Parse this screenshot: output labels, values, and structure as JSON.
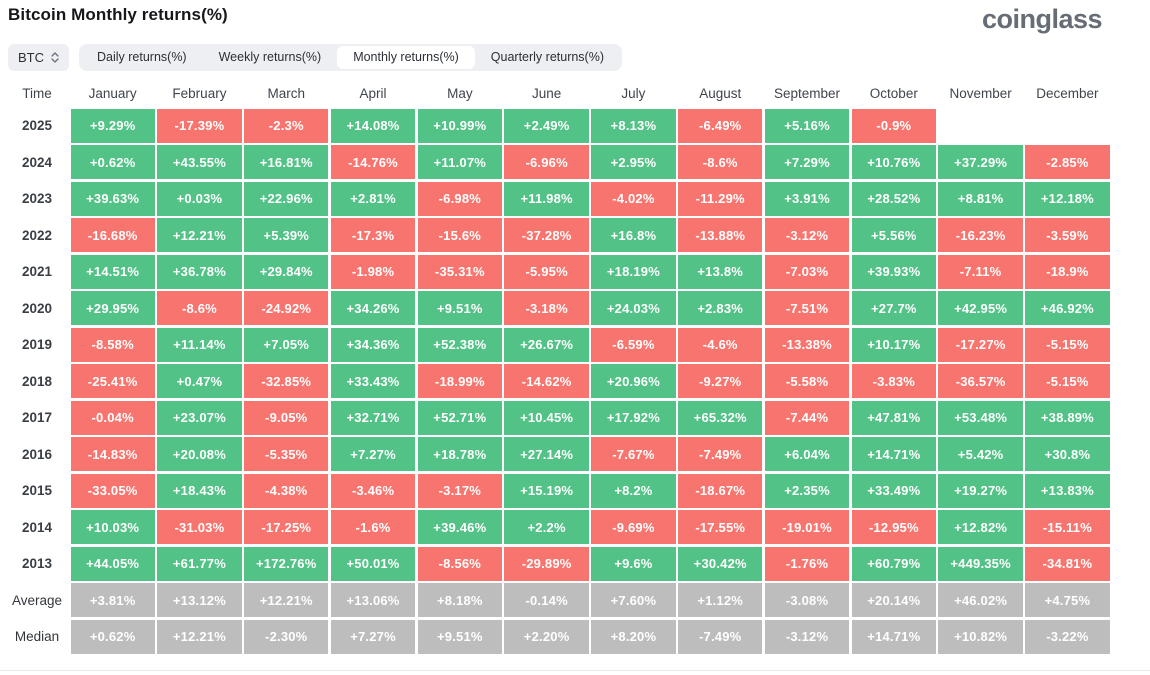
{
  "header": {
    "title": "Bitcoin Monthly returns(%)",
    "logo_text": "coinglass"
  },
  "controls": {
    "symbol": "BTC",
    "tabs": [
      "Daily returns(%)",
      "Weekly returns(%)",
      "Monthly returns(%)",
      "Quarterly returns(%)"
    ],
    "active_tab": "Monthly returns(%)"
  },
  "colors": {
    "positive": "#52c287",
    "negative": "#f8756f",
    "summary": "#bdbdbd"
  },
  "table": {
    "columns": [
      "Time",
      "January",
      "February",
      "March",
      "April",
      "May",
      "June",
      "July",
      "August",
      "September",
      "October",
      "November",
      "December"
    ],
    "rows": [
      {
        "label": "2025",
        "summary": false,
        "values": [
          "+9.29%",
          "-17.39%",
          "-2.3%",
          "+14.08%",
          "+10.99%",
          "+2.49%",
          "+8.13%",
          "-6.49%",
          "+5.16%",
          "-0.9%",
          "",
          ""
        ]
      },
      {
        "label": "2024",
        "summary": false,
        "values": [
          "+0.62%",
          "+43.55%",
          "+16.81%",
          "-14.76%",
          "+11.07%",
          "-6.96%",
          "+2.95%",
          "-8.6%",
          "+7.29%",
          "+10.76%",
          "+37.29%",
          "-2.85%"
        ]
      },
      {
        "label": "2023",
        "summary": false,
        "values": [
          "+39.63%",
          "+0.03%",
          "+22.96%",
          "+2.81%",
          "-6.98%",
          "+11.98%",
          "-4.02%",
          "-11.29%",
          "+3.91%",
          "+28.52%",
          "+8.81%",
          "+12.18%"
        ]
      },
      {
        "label": "2022",
        "summary": false,
        "values": [
          "-16.68%",
          "+12.21%",
          "+5.39%",
          "-17.3%",
          "-15.6%",
          "-37.28%",
          "+16.8%",
          "-13.88%",
          "-3.12%",
          "+5.56%",
          "-16.23%",
          "-3.59%"
        ]
      },
      {
        "label": "2021",
        "summary": false,
        "values": [
          "+14.51%",
          "+36.78%",
          "+29.84%",
          "-1.98%",
          "-35.31%",
          "-5.95%",
          "+18.19%",
          "+13.8%",
          "-7.03%",
          "+39.93%",
          "-7.11%",
          "-18.9%"
        ]
      },
      {
        "label": "2020",
        "summary": false,
        "values": [
          "+29.95%",
          "-8.6%",
          "-24.92%",
          "+34.26%",
          "+9.51%",
          "-3.18%",
          "+24.03%",
          "+2.83%",
          "-7.51%",
          "+27.7%",
          "+42.95%",
          "+46.92%"
        ]
      },
      {
        "label": "2019",
        "summary": false,
        "values": [
          "-8.58%",
          "+11.14%",
          "+7.05%",
          "+34.36%",
          "+52.38%",
          "+26.67%",
          "-6.59%",
          "-4.6%",
          "-13.38%",
          "+10.17%",
          "-17.27%",
          "-5.15%"
        ]
      },
      {
        "label": "2018",
        "summary": false,
        "values": [
          "-25.41%",
          "+0.47%",
          "-32.85%",
          "+33.43%",
          "-18.99%",
          "-14.62%",
          "+20.96%",
          "-9.27%",
          "-5.58%",
          "-3.83%",
          "-36.57%",
          "-5.15%"
        ]
      },
      {
        "label": "2017",
        "summary": false,
        "values": [
          "-0.04%",
          "+23.07%",
          "-9.05%",
          "+32.71%",
          "+52.71%",
          "+10.45%",
          "+17.92%",
          "+65.32%",
          "-7.44%",
          "+47.81%",
          "+53.48%",
          "+38.89%"
        ]
      },
      {
        "label": "2016",
        "summary": false,
        "values": [
          "-14.83%",
          "+20.08%",
          "-5.35%",
          "+7.27%",
          "+18.78%",
          "+27.14%",
          "-7.67%",
          "-7.49%",
          "+6.04%",
          "+14.71%",
          "+5.42%",
          "+30.8%"
        ]
      },
      {
        "label": "2015",
        "summary": false,
        "values": [
          "-33.05%",
          "+18.43%",
          "-4.38%",
          "-3.46%",
          "-3.17%",
          "+15.19%",
          "+8.2%",
          "-18.67%",
          "+2.35%",
          "+33.49%",
          "+19.27%",
          "+13.83%"
        ]
      },
      {
        "label": "2014",
        "summary": false,
        "values": [
          "+10.03%",
          "-31.03%",
          "-17.25%",
          "-1.6%",
          "+39.46%",
          "+2.2%",
          "-9.69%",
          "-17.55%",
          "-19.01%",
          "-12.95%",
          "+12.82%",
          "-15.11%"
        ]
      },
      {
        "label": "2013",
        "summary": false,
        "values": [
          "+44.05%",
          "+61.77%",
          "+172.76%",
          "+50.01%",
          "-8.56%",
          "-29.89%",
          "+9.6%",
          "+30.42%",
          "-1.76%",
          "+60.79%",
          "+449.35%",
          "-34.81%"
        ]
      },
      {
        "label": "Average",
        "summary": true,
        "values": [
          "+3.81%",
          "+13.12%",
          "+12.21%",
          "+13.06%",
          "+8.18%",
          "-0.14%",
          "+7.60%",
          "+1.12%",
          "-3.08%",
          "+20.14%",
          "+46.02%",
          "+4.75%"
        ]
      },
      {
        "label": "Median",
        "summary": true,
        "values": [
          "+0.62%",
          "+12.21%",
          "-2.30%",
          "+7.27%",
          "+9.51%",
          "+2.20%",
          "+8.20%",
          "-7.49%",
          "-3.12%",
          "+14.71%",
          "+10.82%",
          "-3.22%"
        ]
      }
    ]
  }
}
